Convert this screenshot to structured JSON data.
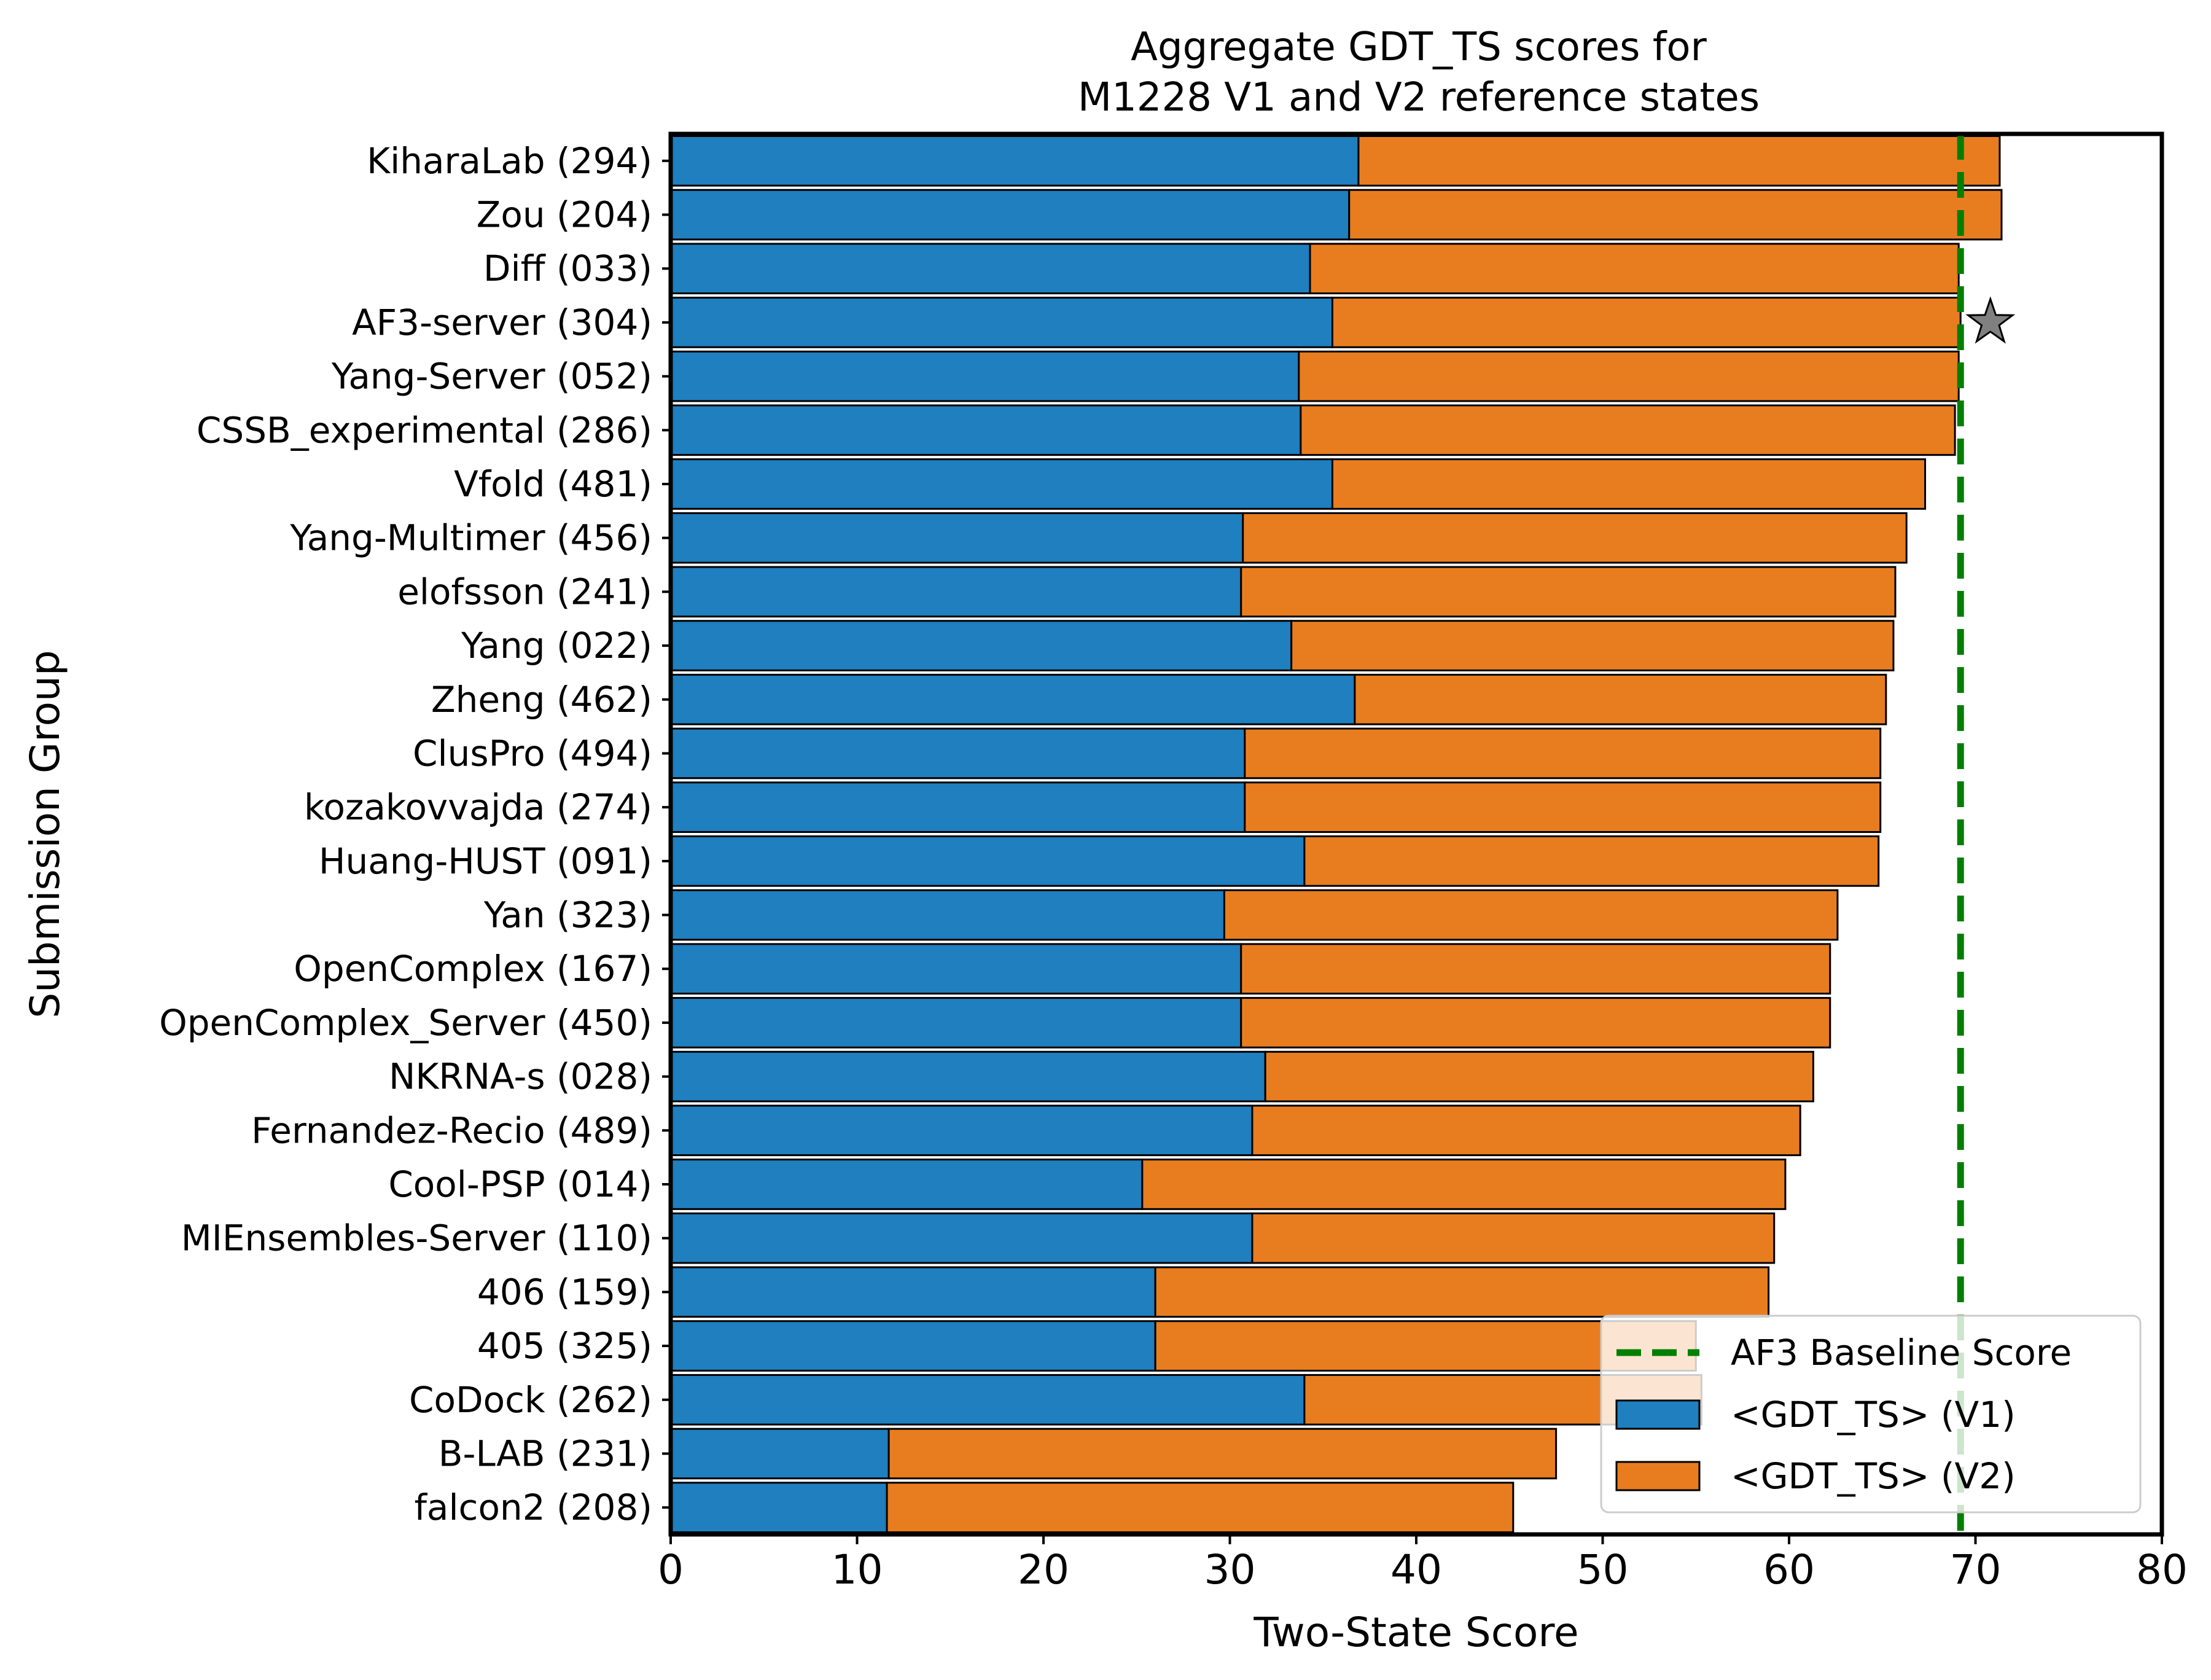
{
  "chart_data": {
    "type": "bar",
    "orientation": "horizontal",
    "stacked": true,
    "title": [
      "Aggregate GDT_TS scores for",
      "M1228 V1 and V2 reference states"
    ],
    "xlabel": "Two-State Score",
    "ylabel": "Submission Group",
    "xlim": [
      0,
      80
    ],
    "xticks": [
      0,
      10,
      20,
      30,
      40,
      50,
      60,
      70,
      80
    ],
    "grid": false,
    "legend_position": "lower-right",
    "categories": [
      "KiharaLab (294)",
      "Zou (204)",
      "Diff (033)",
      "AF3-server (304)",
      "Yang-Server (052)",
      "CSSB_experimental (286)",
      "Vfold (481)",
      "Yang-Multimer (456)",
      "elofsson (241)",
      "Yang (022)",
      "Zheng (462)",
      "ClusPro (494)",
      "kozakovvajda (274)",
      "Huang-HUST (091)",
      "Yan (323)",
      "OpenComplex (167)",
      "OpenComplex_Server (450)",
      "NKRNA-s (028)",
      "Fernandez-Recio (489)",
      "Cool-PSP (014)",
      "MIEnsembles-Server (110)",
      "406 (159)",
      "405 (325)",
      "CoDock (262)",
      "B-LAB (231)",
      "falcon2 (208)"
    ],
    "series": [
      {
        "name": "<GDT_TS> (V1)",
        "color": "#1f7fbf",
        "values": [
          36.9,
          36.4,
          34.3,
          35.5,
          33.7,
          33.8,
          35.5,
          30.7,
          30.6,
          33.3,
          36.7,
          30.8,
          30.8,
          34.0,
          29.7,
          30.6,
          30.6,
          31.9,
          31.2,
          25.3,
          31.2,
          26.0,
          26.0,
          34.0,
          11.7,
          11.6
        ]
      },
      {
        "name": "<GDT_TS> (V2)",
        "color": "#e87d20",
        "values": [
          34.4,
          35.0,
          34.8,
          33.7,
          35.4,
          35.1,
          31.8,
          35.6,
          35.1,
          32.3,
          28.5,
          34.1,
          34.1,
          30.8,
          32.9,
          31.6,
          31.6,
          29.4,
          29.4,
          34.5,
          28.0,
          32.9,
          29.0,
          21.3,
          35.8,
          33.6
        ]
      }
    ],
    "baseline": {
      "name": "AF3 Baseline Score",
      "value": 69.2,
      "color": "#007f00"
    },
    "marker": {
      "category": "AF3-server (304)",
      "x": 70.8,
      "symbol": "star",
      "color": "#808080"
    }
  }
}
